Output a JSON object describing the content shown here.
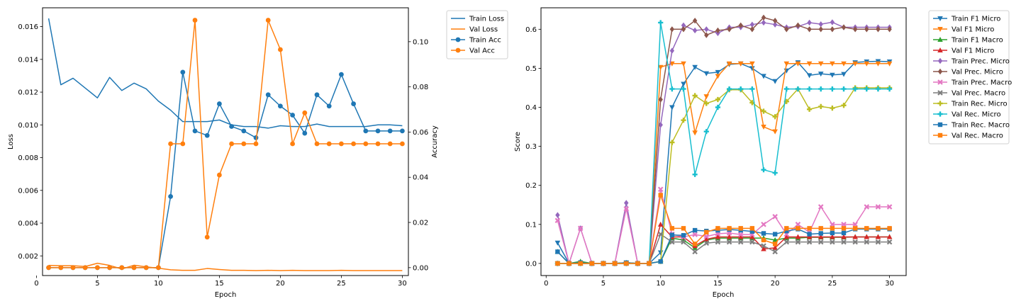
{
  "chart_data": [
    {
      "type": "line",
      "xlabel": "Epoch",
      "ylabel": "Loss",
      "y2label": "Accuracy",
      "grid": false,
      "legend_position": "outside-top-right",
      "x": [
        1,
        2,
        3,
        4,
        5,
        6,
        7,
        8,
        9,
        10,
        11,
        12,
        13,
        14,
        15,
        16,
        17,
        18,
        19,
        20,
        21,
        22,
        23,
        24,
        25,
        26,
        27,
        28,
        29,
        30
      ],
      "xlim": [
        0.5,
        30.5
      ],
      "xticks": [
        0,
        5,
        10,
        15,
        20,
        25,
        30
      ],
      "ylim": [
        0.0008,
        0.01715
      ],
      "yticks": [
        0.002,
        0.004,
        0.006,
        0.008,
        0.01,
        0.012,
        0.014,
        0.016
      ],
      "ytick_labels": [
        "0.002",
        "0.004",
        "0.006",
        "0.008",
        "0.010",
        "0.012",
        "0.014",
        "0.016"
      ],
      "y2lim": [
        -0.0035,
        0.115
      ],
      "y2ticks": [
        0.0,
        0.02,
        0.04,
        0.06,
        0.08,
        0.1
      ],
      "y2tick_labels": [
        "0.00",
        "0.02",
        "0.04",
        "0.06",
        "0.08",
        "0.10"
      ],
      "series": [
        {
          "name": "Train Loss",
          "axis": "left",
          "color": "#1f77b4",
          "marker": "none",
          "values": [
            0.0165,
            0.01245,
            0.01285,
            0.01225,
            0.01165,
            0.0129,
            0.0121,
            0.01255,
            0.0122,
            0.01145,
            0.0109,
            0.0102,
            0.0102,
            0.0102,
            0.0103,
            0.01,
            0.0099,
            0.0099,
            0.0098,
            0.00995,
            0.0099,
            0.0099,
            0.01005,
            0.0099,
            0.0099,
            0.0099,
            0.0099,
            0.01,
            0.01,
            0.00995
          ]
        },
        {
          "name": "Val Loss",
          "axis": "left",
          "color": "#ff7f0e",
          "marker": "none",
          "values": [
            0.00142,
            0.0014,
            0.0014,
            0.00135,
            0.00155,
            0.00142,
            0.0012,
            0.00143,
            0.00133,
            0.00125,
            0.00115,
            0.00112,
            0.00112,
            0.00123,
            0.00117,
            0.00112,
            0.00112,
            0.0011,
            0.00112,
            0.0011,
            0.00112,
            0.0011,
            0.0011,
            0.0011,
            0.00112,
            0.0011,
            0.0011,
            0.0011,
            0.0011,
            0.0011
          ]
        },
        {
          "name": "Train Acc",
          "axis": "right",
          "color": "#1f77b4",
          "marker": "circle",
          "values": [
            0,
            0,
            0,
            0,
            0,
            0,
            0,
            0,
            0,
            0,
            0.0315,
            0.0865,
            0.0605,
            0.0585,
            0.0725,
            0.0625,
            0.0605,
            0.0575,
            0.0765,
            0.0715,
            0.0675,
            0.0595,
            0.0765,
            0.0715,
            0.0855,
            0.0725,
            0.0605,
            0.0605,
            0.0605,
            0.0605
          ]
        },
        {
          "name": "Val Acc",
          "axis": "right",
          "color": "#ff7f0e",
          "marker": "circle",
          "values": [
            0,
            0,
            0,
            0,
            0,
            0,
            0,
            0,
            0,
            0,
            0.0548,
            0.0548,
            0.1095,
            0.0135,
            0.041,
            0.0548,
            0.0548,
            0.0548,
            0.1095,
            0.0965,
            0.0548,
            0.0685,
            0.0548,
            0.0548,
            0.0548,
            0.0548,
            0.0548,
            0.0548,
            0.0548,
            0.0548
          ]
        }
      ]
    },
    {
      "type": "line",
      "xlabel": "Epoch",
      "ylabel": "Score",
      "grid": false,
      "legend_position": "outside-top-right",
      "x": [
        1,
        2,
        3,
        4,
        5,
        6,
        7,
        8,
        9,
        10,
        11,
        12,
        13,
        14,
        15,
        16,
        17,
        18,
        19,
        20,
        21,
        22,
        23,
        24,
        25,
        26,
        27,
        28,
        29,
        30
      ],
      "xlim": [
        -0.45,
        31.45
      ],
      "xticks": [
        0,
        5,
        10,
        15,
        20,
        25,
        30
      ],
      "ylim": [
        -0.031,
        0.655
      ],
      "yticks": [
        0.0,
        0.1,
        0.2,
        0.3,
        0.4,
        0.5,
        0.6
      ],
      "ytick_labels": [
        "0.0",
        "0.1",
        "0.2",
        "0.3",
        "0.4",
        "0.5",
        "0.6"
      ],
      "series": [
        {
          "name": "Train F1 Micro",
          "color": "#1f77b4",
          "marker": "tri_down",
          "values": [
            0.053,
            0,
            0.002,
            0,
            0,
            0,
            0.002,
            0,
            0,
            0.028,
            0.4,
            0.46,
            0.503,
            0.487,
            0.49,
            0.51,
            0.512,
            0.5,
            0.48,
            0.467,
            0.494,
            0.515,
            0.482,
            0.486,
            0.483,
            0.485,
            0.515,
            0.517,
            0.518,
            0.517
          ]
        },
        {
          "name": "Val F1 Micro",
          "color": "#ff7f0e",
          "marker": "tri_down",
          "values": [
            0,
            0,
            0,
            0,
            0,
            0,
            0,
            0,
            0,
            0.503,
            0.512,
            0.512,
            0.335,
            0.428,
            0.48,
            0.512,
            0.512,
            0.512,
            0.35,
            0.338,
            0.512,
            0.512,
            0.512,
            0.512,
            0.512,
            0.512,
            0.512,
            0.512,
            0.512,
            0.512
          ]
        },
        {
          "name": "Train F1 Macro",
          "color": "#2ca02c",
          "marker": "tri_up",
          "values": [
            0.03,
            0,
            0.005,
            0,
            0,
            0,
            0.002,
            0,
            0,
            0.005,
            0.065,
            0.06,
            0.04,
            0.06,
            0.065,
            0.065,
            0.065,
            0.065,
            0.065,
            0.06,
            0.065,
            0.065,
            0.067,
            0.067,
            0.067,
            0.067,
            0.068,
            0.068,
            0.068,
            0.068
          ]
        },
        {
          "name": "Val F1 Micro",
          "color": "#d62728",
          "marker": "tri_up",
          "values": [
            0,
            0,
            0,
            0,
            0,
            0,
            0,
            0,
            0,
            0.1,
            0.068,
            0.068,
            0.045,
            0.062,
            0.068,
            0.068,
            0.068,
            0.068,
            0.037,
            0.04,
            0.068,
            0.068,
            0.068,
            0.068,
            0.068,
            0.068,
            0.068,
            0.068,
            0.068,
            0.068
          ]
        },
        {
          "name": "Train Prec. Micro",
          "color": "#9467bd",
          "marker": "diamond",
          "values": [
            0.124,
            0,
            0.09,
            0,
            0,
            0,
            0.155,
            0,
            0,
            0.355,
            0.545,
            0.61,
            0.597,
            0.6,
            0.59,
            0.605,
            0.605,
            0.612,
            0.617,
            0.612,
            0.605,
            0.607,
            0.617,
            0.613,
            0.618,
            0.605,
            0.605,
            0.605,
            0.605,
            0.605
          ]
        },
        {
          "name": "Val Prec. Micro",
          "color": "#8c564b",
          "marker": "diamond",
          "values": [
            0,
            0,
            0,
            0,
            0,
            0,
            0,
            0,
            0,
            0.42,
            0.6,
            0.6,
            0.622,
            0.585,
            0.597,
            0.6,
            0.61,
            0.6,
            0.63,
            0.622,
            0.6,
            0.61,
            0.6,
            0.6,
            0.6,
            0.605,
            0.6,
            0.6,
            0.6,
            0.6
          ]
        },
        {
          "name": "Train Prec. Macro",
          "color": "#e377c2",
          "marker": "x",
          "values": [
            0.11,
            0,
            0.09,
            0,
            0,
            0,
            0.14,
            0,
            0,
            0.19,
            0.075,
            0.068,
            0.074,
            0.069,
            0.076,
            0.078,
            0.074,
            0.074,
            0.1,
            0.12,
            0.075,
            0.1,
            0.08,
            0.145,
            0.1,
            0.1,
            0.1,
            0.145,
            0.145,
            0.145
          ]
        },
        {
          "name": "Val Prec. Macro",
          "color": "#7f7f7f",
          "marker": "x",
          "values": [
            0,
            0,
            0,
            0,
            0,
            0,
            0,
            0,
            0,
            0.075,
            0.055,
            0.055,
            0.03,
            0.052,
            0.055,
            0.055,
            0.055,
            0.055,
            0.045,
            0.03,
            0.055,
            0.055,
            0.055,
            0.055,
            0.055,
            0.055,
            0.055,
            0.055,
            0.055,
            0.055
          ]
        },
        {
          "name": "Train Rec. Micro",
          "color": "#bcbd22",
          "marker": "plus",
          "values": [
            0,
            0,
            0,
            0,
            0,
            0,
            0,
            0,
            0,
            0.005,
            0.31,
            0.367,
            0.43,
            0.41,
            0.42,
            0.445,
            0.445,
            0.412,
            0.39,
            0.376,
            0.415,
            0.447,
            0.395,
            0.402,
            0.398,
            0.405,
            0.45,
            0.45,
            0.45,
            0.45
          ]
        },
        {
          "name": "Val Rec. Micro",
          "color": "#17becf",
          "marker": "plus",
          "values": [
            0,
            0,
            0,
            0,
            0,
            0,
            0,
            0,
            0,
            0.617,
            0.447,
            0.447,
            0.228,
            0.338,
            0.4,
            0.447,
            0.447,
            0.447,
            0.24,
            0.232,
            0.447,
            0.447,
            0.447,
            0.447,
            0.447,
            0.447,
            0.447,
            0.447,
            0.447,
            0.447
          ]
        },
        {
          "name": "Train Rec. Macro",
          "color": "#1f77b4",
          "marker": "square",
          "values": [
            0.03,
            0,
            0.002,
            0,
            0,
            0,
            0.002,
            0,
            0,
            0.005,
            0.073,
            0.072,
            0.085,
            0.083,
            0.085,
            0.087,
            0.085,
            0.082,
            0.077,
            0.075,
            0.083,
            0.088,
            0.075,
            0.077,
            0.078,
            0.078,
            0.088,
            0.088,
            0.088,
            0.088
          ]
        },
        {
          "name": "Val Rec. Macro",
          "color": "#ff7f0e",
          "marker": "square",
          "values": [
            0,
            0,
            0,
            0,
            0,
            0,
            0,
            0,
            0,
            0.175,
            0.09,
            0.09,
            0.05,
            0.08,
            0.09,
            0.09,
            0.09,
            0.09,
            0.06,
            0.05,
            0.09,
            0.09,
            0.09,
            0.09,
            0.09,
            0.09,
            0.09,
            0.09,
            0.09,
            0.09
          ]
        }
      ]
    }
  ]
}
